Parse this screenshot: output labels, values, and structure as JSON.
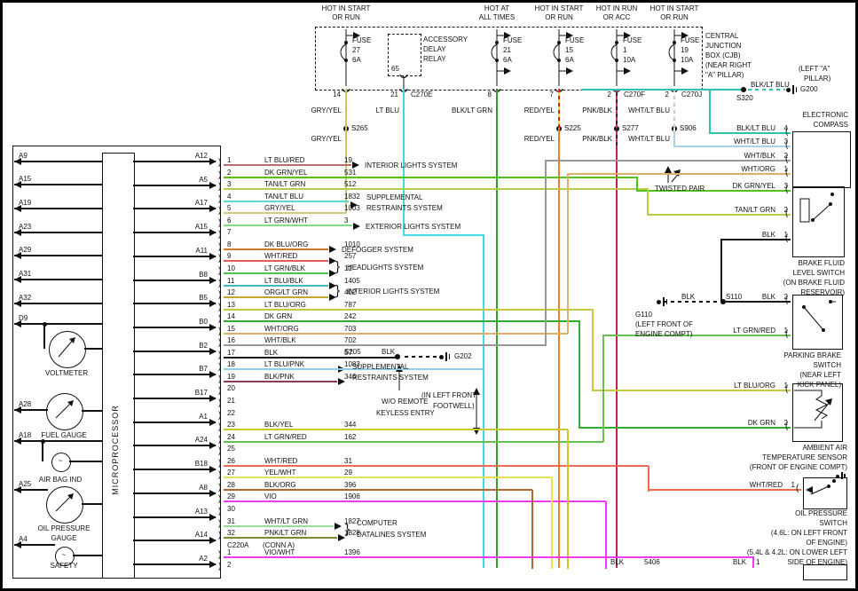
{
  "icons": {
    "bracket": ")",
    "paren": "(",
    "brace": "}",
    "airbag_symbol": "~",
    "safety_symbol": "~"
  },
  "cjb": {
    "caption": [
      "CENTRAL",
      "JUNCTION",
      "BOX (CJB)",
      "(NEAR RIGHT",
      "\"A\" PILLAR)"
    ],
    "relay": {
      "label": [
        "ACCESSORY",
        "DELAY",
        "RELAY"
      ],
      "pin": "65"
    },
    "columns": [
      {
        "header": [
          "HOT IN START",
          "OR RUN"
        ],
        "fuse": {
          "name": "FUSE",
          "num": "27",
          "amp": "6A"
        },
        "pin": "14",
        "conn": "",
        "wire": "GRY/YEL",
        "splice": "S265",
        "wire2": "GRY/YEL"
      },
      {
        "header": [],
        "fuse": null,
        "pin": "21",
        "conn": "C270E",
        "wire": "LT BLU",
        "splice": "",
        "wire2": ""
      },
      {
        "header": [
          "HOT AT",
          "ALL TIMES"
        ],
        "fuse": {
          "name": "FUSE",
          "num": "21",
          "amp": "6A"
        },
        "pin": "8",
        "conn": "",
        "wire": "BLK/LT GRN",
        "splice": "",
        "wire2": ""
      },
      {
        "header": [
          "HOT IN START",
          "OR RUN"
        ],
        "fuse": {
          "name": "FUSE",
          "num": "15",
          "amp": "6A"
        },
        "pin": "7",
        "conn": "",
        "wire": "RED/YEL",
        "splice": "S225",
        "wire2": "RED/YEL"
      },
      {
        "header": [
          "HOT IN RUN",
          "OR ACC"
        ],
        "fuse": {
          "name": "FUSE",
          "num": "1",
          "amp": "10A"
        },
        "pin": "2",
        "conn": "C270F",
        "wire": "PNK/BLK",
        "splice": "S277",
        "wire2": "PNK/BLK"
      },
      {
        "header": [
          "HOT IN START",
          "OR RUN"
        ],
        "fuse": {
          "name": "FUSE",
          "num": "19",
          "amp": "10A"
        },
        "pin": "2",
        "conn": "C270J",
        "wire": "WHT/LT BLU",
        "splice": "S906",
        "wire2": "WHT/LT BLU"
      }
    ]
  },
  "g200": {
    "wire": "BLK/LT BLU",
    "splice": "S320",
    "name": "G200",
    "loc": [
      "(LEFT \"A\"",
      "PILLAR)"
    ]
  },
  "cluster": {
    "micro": "MICROPROCESSOR",
    "left_pins": [
      "A9",
      "A15",
      "A19",
      "A23",
      "A29",
      "A31",
      "A32",
      "D9"
    ],
    "right_pins": [
      "A12",
      "A5",
      "A17",
      "A15",
      "A11",
      "B8",
      "B5",
      "B0",
      "B2",
      "B7",
      "B17",
      "A1",
      "A24",
      "B18",
      "A8",
      "A13",
      "A14",
      "A2"
    ],
    "gauges": [
      {
        "pin": "",
        "label": [
          "VOLTMETER"
        ]
      },
      {
        "pin": "A28",
        "label": [
          "FUEL GAUGE"
        ]
      },
      {
        "pin": "A18",
        "label": [
          "AIR BAG IND"
        ]
      },
      {
        "pin": "A25",
        "label": [
          "OIL PRESSURE",
          "GAUGE"
        ]
      },
      {
        "pin": "A4",
        "label": [
          "SAFETY"
        ]
      }
    ]
  },
  "rows": [
    {
      "n": "1",
      "name": "LT BLU/RED",
      "ckt": "19",
      "color": "#b5706e"
    },
    {
      "n": "2",
      "name": "DK GRN/YEL",
      "ckt": "531",
      "color": "#55c119"
    },
    {
      "n": "3",
      "name": "TAN/LT GRN",
      "ckt": "512",
      "color": "#b7cd49"
    },
    {
      "n": "4",
      "name": "TAN/LT BLU",
      "ckt": "1832",
      "color": "#5fd8cf"
    },
    {
      "n": "5",
      "name": "GRY/YEL",
      "ckt": "1003",
      "color": "#d3cb79"
    },
    {
      "n": "6",
      "name": "LT GRN/WHT",
      "ckt": "3",
      "color": "#82dd82"
    },
    {
      "n": "7",
      "name": "",
      "ckt": "",
      "color": ""
    },
    {
      "n": "8",
      "name": "DK BLU/ORG",
      "ckt": "1010",
      "color": "#cc7a28"
    },
    {
      "n": "9",
      "name": "WHT/RED",
      "ckt": "257",
      "color": "#e85a5a"
    },
    {
      "n": "10",
      "name": "LT GRN/BLK",
      "ckt": "12",
      "color": "#4fc34f"
    },
    {
      "n": "11",
      "name": "LT BLU/BLK",
      "ckt": "1405",
      "color": "#3fb9c9"
    },
    {
      "n": "12",
      "name": "ORG/LT GRN",
      "ckt": "402",
      "color": "#c4a52e"
    },
    {
      "n": "13",
      "name": "LT BLU/ORG",
      "ckt": "787",
      "color": "#c9c93e"
    },
    {
      "n": "14",
      "name": "DK GRN",
      "ckt": "242",
      "color": "#2fae2f"
    },
    {
      "n": "15",
      "name": "WHT/ORG",
      "ckt": "703",
      "color": "#ddb06a"
    },
    {
      "n": "16",
      "name": "WHT/BLK",
      "ckt": "702",
      "color": "#999999"
    },
    {
      "n": "17",
      "name": "BLK",
      "ckt": "57",
      "color": "#1a1a1a"
    },
    {
      "n": "18",
      "name": "LT BLU/PNK",
      "ckt": "1083",
      "color": "#8fd0f2"
    },
    {
      "n": "19",
      "name": "BLK/PNK",
      "ckt": "346",
      "color": "#8e3a52"
    },
    {
      "n": "20",
      "name": "",
      "ckt": "",
      "color": ""
    },
    {
      "n": "21",
      "name": "",
      "ckt": "",
      "color": ""
    },
    {
      "n": "22",
      "name": "",
      "ckt": "",
      "color": ""
    },
    {
      "n": "23",
      "name": "BLK/YEL",
      "ckt": "344",
      "color": "#c9c92e"
    },
    {
      "n": "24",
      "name": "LT GRN/RED",
      "ckt": "162",
      "color": "#64c150"
    },
    {
      "n": "25",
      "name": "",
      "ckt": "",
      "color": ""
    },
    {
      "n": "26",
      "name": "WHT/RED",
      "ckt": "31",
      "color": "#ef6a54"
    },
    {
      "n": "27",
      "name": "YEL/WHT",
      "ckt": "29",
      "color": "#e8e44f"
    },
    {
      "n": "28",
      "name": "BLK/ORG",
      "ckt": "396",
      "color": "#b0672f"
    },
    {
      "n": "29",
      "name": "VIO",
      "ckt": "1906",
      "color": "#ee3bee"
    },
    {
      "n": "30",
      "name": "",
      "ckt": "",
      "color": ""
    },
    {
      "n": "31",
      "name": "WHT/LT GRN",
      "ckt": "1827",
      "color": "#9adb9a"
    },
    {
      "n": "32",
      "name": "PNK/LT GRN",
      "ckt": "1828",
      "color": "#7b8c2e"
    }
  ],
  "conn_a": {
    "label": "C220A",
    "label2": "(CONN A)",
    "rows": [
      {
        "n": "1",
        "name": "VIO/WHT",
        "ckt": "1396",
        "color": "#f03af0"
      },
      {
        "n": "2",
        "name": "",
        "ckt": "",
        "color": "#f03af0"
      }
    ]
  },
  "systems": {
    "interior1": "INTERIOR LIGHTS SYSTEM",
    "srs1": [
      "SUPPLEMENTAL",
      "RESTRAINTS SYSTEM"
    ],
    "exterior": "EXTERIOR LIGHTS SYSTEM",
    "defogger": "DEFOGGER SYSTEM",
    "headlights": "HEADLIGHTS SYSTEM",
    "interior2": "INTERIOR LIGHTS SYSTEM",
    "srs2": [
      "SUPPLEMENTAL",
      "RESTRAINTS SYSTEM"
    ],
    "wo_rke": [
      "W/O REMOTE",
      "KEYLESS ENTRY"
    ],
    "computer": [
      "COMPUTER",
      "DATALINES SYSTEM"
    ]
  },
  "grounds": {
    "g202": {
      "splice": "S205",
      "wire": "BLK",
      "name": "G202",
      "loc": [
        "(IN LEFT FRONT",
        "FOOTWELL)"
      ]
    },
    "g110": {
      "splice": "S110",
      "wire": "BLK",
      "wire2": "BLK",
      "name": "G110",
      "loc": [
        "(LEFT FRONT OF",
        "ENGINE COMPT)"
      ]
    }
  },
  "components": {
    "compass": {
      "caption": [
        "ELECTRONIC",
        "COMPASS"
      ],
      "pins": [
        {
          "n": "4",
          "wire": "BLK/LT BLU"
        },
        {
          "n": "3",
          "wire": "WHT/LT BLU"
        },
        {
          "n": "2",
          "wire": "WHT/BLK"
        },
        {
          "n": "1",
          "wire": "WHT/ORG"
        }
      ]
    },
    "twisted": "TWISTED PAIR",
    "brake_fluid": {
      "caption": [
        "BRAKE FLUID",
        "LEVEL SWITCH",
        "(ON BRAKE FLUID",
        "RESERVOIR)"
      ],
      "pins": [
        {
          "n": "3",
          "wire": "DK GRN/YEL"
        },
        {
          "n": "2",
          "wire": "TAN/LT GRN"
        },
        {
          "n": "1",
          "wire": "BLK"
        }
      ]
    },
    "parking": {
      "caption": [
        "PARKING BRAKE",
        "SWITCH",
        "(NEAR LEFT",
        "KICK PANEL)"
      ],
      "pins": [
        {
          "n": "2",
          "wire": "BLK"
        },
        {
          "n": "1",
          "wire": "LT GRN/RED"
        }
      ]
    },
    "ambient": {
      "caption": [
        "AMBIENT AIR",
        "TEMPERATURE SENSOR",
        "(FRONT OF ENGINE COMPT)"
      ],
      "pins": [
        {
          "n": "1",
          "wire": "LT BLU/ORG"
        },
        {
          "n": "2",
          "wire": "DK GRN"
        }
      ]
    },
    "oil": {
      "caption": [
        "OIL PRESSURE",
        "SWITCH",
        "(4.6L: ON LEFT FRONT",
        "OF ENGINE)",
        "(5.4L & 4.2L: ON LOWER LEFT",
        "SIDE OF ENGINE)"
      ],
      "pins": [
        {
          "n": "1",
          "wire": "WHT/RED"
        }
      ]
    }
  },
  "bottom_partial": {
    "wire": "BLK",
    "ckt": "5406",
    "wire2": "BLK",
    "pin": "1"
  },
  "colors": {
    "gryyel": "#ccc46a",
    "ltblu": "#3fd9e8",
    "blkltgrn": "#2d9e2d",
    "redyel_solid": "#e8802e",
    "redyel_a": "#dd2121",
    "redyel_b": "#e8d44a",
    "pnkblk_solid": "#bb2448",
    "pnkblk_a": "#d02a55",
    "pnkblk_b": "#2a2a2a",
    "whtltblu_solid": "#a9d2ea",
    "whtltblu_a": "#b9cedd",
    "whtltblu_b": "#f2f6f9",
    "teal": "#2bc4b2",
    "black": "#1a1a1a"
  }
}
